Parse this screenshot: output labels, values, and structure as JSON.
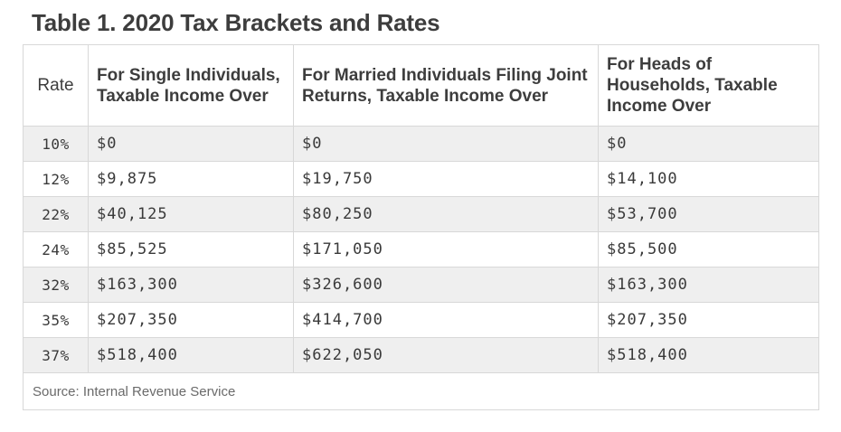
{
  "title": "Table 1. 2020 Tax Brackets and Rates",
  "table": {
    "headers": {
      "rate": "Rate",
      "single": "For Single Individuals, Taxable Income Over",
      "married": "For Married Individuals Filing Joint Returns, Taxable Income Over",
      "heads": "For Heads of Households, Taxable Income Over"
    },
    "rows": [
      {
        "rate": "10%",
        "single": "$0",
        "married": "$0",
        "heads": "$0"
      },
      {
        "rate": "12%",
        "single": "$9,875",
        "married": "$19,750",
        "heads": "$14,100"
      },
      {
        "rate": "22%",
        "single": "$40,125",
        "married": "$80,250",
        "heads": "$53,700"
      },
      {
        "rate": "24%",
        "single": "$85,525",
        "married": "$171,050",
        "heads": "$85,500"
      },
      {
        "rate": "32%",
        "single": "$163,300",
        "married": "$326,600",
        "heads": "$163,300"
      },
      {
        "rate": "35%",
        "single": "$207,350",
        "married": "$414,700",
        "heads": "$207,350"
      },
      {
        "rate": "37%",
        "single": "$518,400",
        "married": "$622,050",
        "heads": "$518,400"
      }
    ],
    "source": "Source: Internal Revenue Service"
  },
  "colors": {
    "shaded_row": "#efefef",
    "border": "#d8d8d8",
    "title_text": "#3d3d3d"
  }
}
